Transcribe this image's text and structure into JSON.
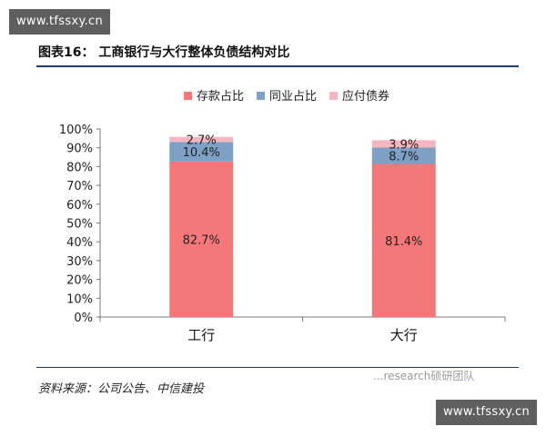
{
  "watermark": {
    "top": "www.tfssxy.cn",
    "bottom": "www.tfssxy.cn"
  },
  "figure": {
    "title": "图表16： 工商银行与大行整体负债结构对比",
    "source": "资料来源：公司公告、中信建投"
  },
  "brand_overlay": "...research硕研团队",
  "colors": {
    "red": "#f4787a",
    "blue": "#7da0c4",
    "pink": "#f6b6c0",
    "axis": "#777777"
  },
  "chart_data": {
    "type": "bar",
    "stacked": true,
    "title": "",
    "xlabel": "",
    "ylabel": "",
    "categories": [
      "工行",
      "大行"
    ],
    "series": [
      {
        "name": "存款占比",
        "values": [
          82.7,
          81.4
        ],
        "labels": [
          "82.7%",
          "81.4%"
        ],
        "color": "#f4787a"
      },
      {
        "name": "同业占比",
        "values": [
          10.4,
          8.7
        ],
        "labels": [
          "10.4%",
          "8.7%"
        ],
        "color": "#7da0c4"
      },
      {
        "name": "应付债券",
        "values": [
          2.7,
          3.9
        ],
        "labels": [
          "2.7%",
          "3.9%"
        ],
        "color": "#f6b6c0"
      }
    ],
    "yticks": [
      "0%",
      "10%",
      "20%",
      "30%",
      "40%",
      "50%",
      "60%",
      "70%",
      "80%",
      "90%",
      "100%"
    ],
    "ylim": [
      0,
      100
    ],
    "legend": "top",
    "grid": false
  }
}
